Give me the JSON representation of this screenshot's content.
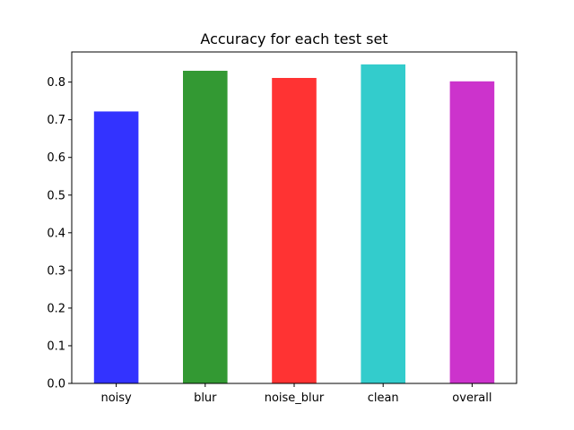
{
  "chart_data": {
    "type": "bar",
    "title": "Accuracy for each test set",
    "xlabel": "",
    "ylabel": "",
    "categories": [
      "noisy",
      "blur",
      "noise_blur",
      "clean",
      "overall"
    ],
    "values": [
      0.722,
      0.83,
      0.811,
      0.847,
      0.802
    ],
    "colors": [
      "#3333ff",
      "#339933",
      "#ff3333",
      "#33cccc",
      "#cc33cc"
    ],
    "ylim": [
      0,
      0.88
    ],
    "yticks": [
      0.0,
      0.1,
      0.2,
      0.3,
      0.4,
      0.5,
      0.6,
      0.7,
      0.8
    ],
    "ytick_labels": [
      "0.0",
      "0.1",
      "0.2",
      "0.3",
      "0.4",
      "0.5",
      "0.6",
      "0.7",
      "0.8"
    ],
    "grid": false,
    "legend": false
  }
}
